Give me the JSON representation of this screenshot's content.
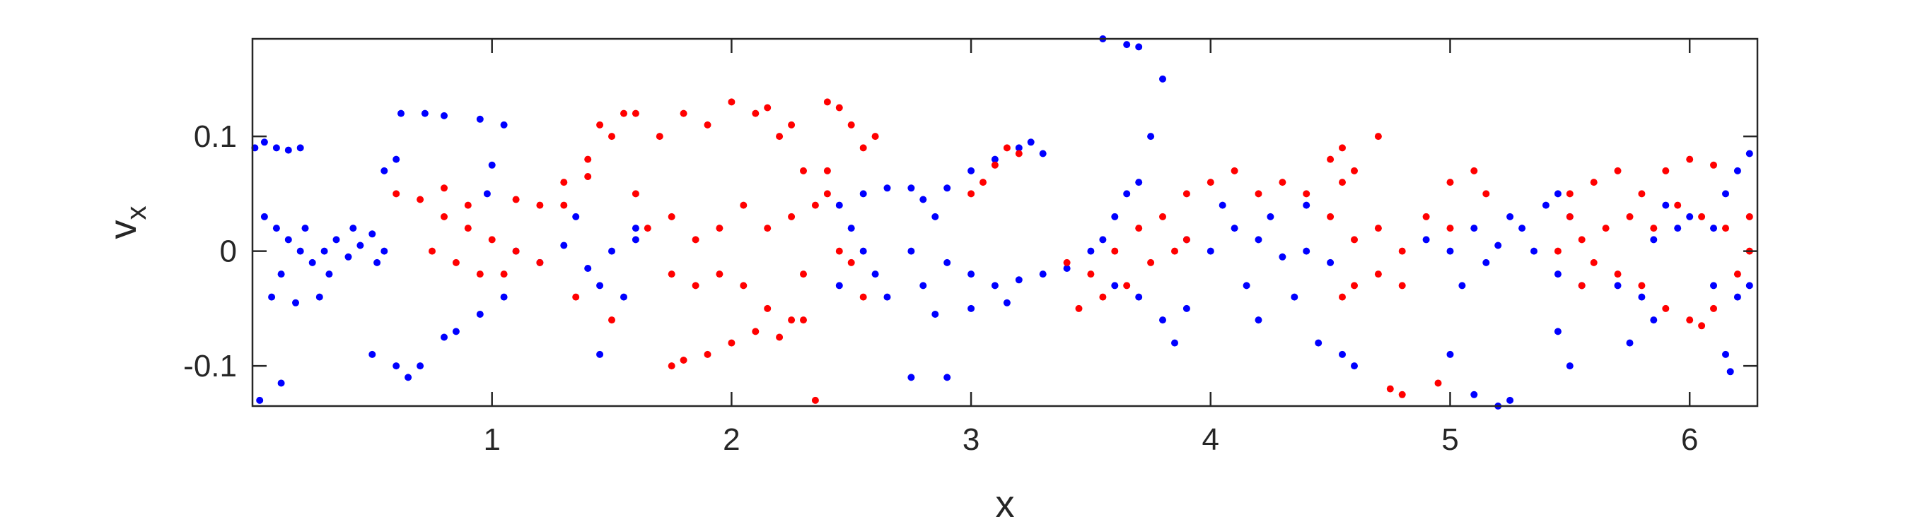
{
  "chart_data": {
    "type": "scatter",
    "title": "",
    "xlabel": "x",
    "ylabel": "v",
    "ylabel_sub": "x",
    "xlim": [
      0,
      6.283
    ],
    "ylim": [
      -0.135,
      0.185
    ],
    "xticks": [
      1,
      2,
      3,
      4,
      5,
      6
    ],
    "xtick_labels": [
      "1",
      "2",
      "3",
      "4",
      "5",
      "6"
    ],
    "yticks": [
      -0.1,
      0,
      0.1
    ],
    "ytick_labels": [
      "-0.1",
      "0",
      "0.1"
    ],
    "grid": false,
    "legend": "none",
    "series": [
      {
        "color": "#0000ff",
        "points": [
          [
            0.01,
            0.09
          ],
          [
            0.05,
            0.095
          ],
          [
            0.1,
            0.09
          ],
          [
            0.15,
            0.088
          ],
          [
            0.2,
            0.09
          ],
          [
            0.05,
            0.03
          ],
          [
            0.1,
            0.02
          ],
          [
            0.15,
            0.01
          ],
          [
            0.2,
            0.0
          ],
          [
            0.25,
            -0.01
          ],
          [
            0.3,
            0.0
          ],
          [
            0.35,
            0.01
          ],
          [
            0.4,
            -0.005
          ],
          [
            0.45,
            0.005
          ],
          [
            0.5,
            0.015
          ],
          [
            0.55,
            0.0
          ],
          [
            0.12,
            -0.02
          ],
          [
            0.22,
            0.02
          ],
          [
            0.32,
            -0.02
          ],
          [
            0.42,
            0.02
          ],
          [
            0.52,
            -0.01
          ],
          [
            0.08,
            -0.04
          ],
          [
            0.18,
            -0.045
          ],
          [
            0.28,
            -0.04
          ],
          [
            0.03,
            -0.13
          ],
          [
            0.12,
            -0.115
          ],
          [
            0.5,
            -0.09
          ],
          [
            0.6,
            -0.1
          ],
          [
            0.55,
            0.07
          ],
          [
            0.6,
            0.08
          ],
          [
            0.62,
            0.12
          ],
          [
            0.72,
            0.12
          ],
          [
            0.8,
            0.118
          ],
          [
            0.95,
            0.115
          ],
          [
            1.05,
            0.11
          ],
          [
            1.0,
            0.075
          ],
          [
            0.98,
            0.05
          ],
          [
            1.1,
            0.0
          ],
          [
            1.2,
            -0.01
          ],
          [
            1.3,
            0.005
          ],
          [
            1.4,
            -0.015
          ],
          [
            1.5,
            0.0
          ],
          [
            1.6,
            0.01
          ],
          [
            1.35,
            0.03
          ],
          [
            1.45,
            -0.03
          ],
          [
            1.55,
            -0.04
          ],
          [
            1.45,
            -0.09
          ],
          [
            1.6,
            0.02
          ],
          [
            0.8,
            -0.075
          ],
          [
            0.85,
            -0.07
          ],
          [
            0.95,
            -0.055
          ],
          [
            1.05,
            -0.04
          ],
          [
            0.7,
            -0.1
          ],
          [
            0.65,
            -0.11
          ],
          [
            2.45,
            0.04
          ],
          [
            2.5,
            0.02
          ],
          [
            2.55,
            0.0
          ],
          [
            2.6,
            -0.02
          ],
          [
            2.65,
            -0.04
          ],
          [
            2.45,
            -0.03
          ],
          [
            2.55,
            0.05
          ],
          [
            2.65,
            0.055
          ],
          [
            2.75,
            0.055
          ],
          [
            2.8,
            0.045
          ],
          [
            2.75,
            0.0
          ],
          [
            2.85,
            0.03
          ],
          [
            2.9,
            0.055
          ],
          [
            3.0,
            0.07
          ],
          [
            3.1,
            0.08
          ],
          [
            3.2,
            0.09
          ],
          [
            3.3,
            0.085
          ],
          [
            3.25,
            0.095
          ],
          [
            3.0,
            -0.02
          ],
          [
            3.1,
            -0.03
          ],
          [
            3.2,
            -0.025
          ],
          [
            3.3,
            -0.02
          ],
          [
            3.4,
            -0.015
          ],
          [
            3.0,
            -0.05
          ],
          [
            3.15,
            -0.045
          ],
          [
            2.8,
            -0.03
          ],
          [
            2.9,
            -0.01
          ],
          [
            2.85,
            -0.055
          ],
          [
            2.75,
            -0.11
          ],
          [
            2.9,
            -0.11
          ],
          [
            3.5,
            0.0
          ],
          [
            3.55,
            0.01
          ],
          [
            3.6,
            0.03
          ],
          [
            3.65,
            0.05
          ],
          [
            3.7,
            0.06
          ],
          [
            3.75,
            0.1
          ],
          [
            3.8,
            0.15
          ],
          [
            3.55,
            0.185
          ],
          [
            3.65,
            0.18
          ],
          [
            3.7,
            0.178
          ],
          [
            3.6,
            -0.03
          ],
          [
            3.7,
            -0.04
          ],
          [
            3.8,
            -0.06
          ],
          [
            3.9,
            -0.05
          ],
          [
            3.85,
            -0.08
          ],
          [
            3.9,
            0.01
          ],
          [
            4.0,
            0.0
          ],
          [
            4.1,
            0.02
          ],
          [
            4.2,
            0.01
          ],
          [
            4.3,
            -0.005
          ],
          [
            4.4,
            0.0
          ],
          [
            4.5,
            -0.01
          ],
          [
            4.05,
            0.04
          ],
          [
            4.15,
            -0.03
          ],
          [
            4.25,
            0.03
          ],
          [
            4.35,
            -0.04
          ],
          [
            4.45,
            -0.08
          ],
          [
            4.4,
            0.04
          ],
          [
            4.2,
            -0.06
          ],
          [
            4.55,
            -0.09
          ],
          [
            4.6,
            -0.1
          ],
          [
            4.9,
            0.01
          ],
          [
            5.0,
            0.0
          ],
          [
            5.1,
            0.02
          ],
          [
            5.2,
            0.005
          ],
          [
            5.3,
            0.02
          ],
          [
            5.4,
            0.04
          ],
          [
            5.45,
            0.05
          ],
          [
            5.5,
            0.03
          ],
          [
            5.05,
            -0.03
          ],
          [
            5.15,
            -0.01
          ],
          [
            5.25,
            0.03
          ],
          [
            5.35,
            0.0
          ],
          [
            5.45,
            -0.02
          ],
          [
            5.55,
            -0.03
          ],
          [
            5.2,
            -0.135
          ],
          [
            5.25,
            -0.13
          ],
          [
            5.1,
            -0.125
          ],
          [
            5.0,
            -0.09
          ],
          [
            5.45,
            -0.07
          ],
          [
            5.5,
            -0.1
          ],
          [
            5.75,
            -0.08
          ],
          [
            5.85,
            -0.06
          ],
          [
            5.9,
            0.04
          ],
          [
            5.95,
            0.02
          ],
          [
            6.0,
            0.03
          ],
          [
            6.1,
            0.02
          ],
          [
            6.15,
            0.05
          ],
          [
            6.2,
            0.07
          ],
          [
            6.25,
            0.085
          ],
          [
            6.1,
            -0.03
          ],
          [
            6.2,
            -0.04
          ],
          [
            6.25,
            -0.03
          ],
          [
            6.15,
            -0.09
          ],
          [
            6.17,
            -0.105
          ],
          [
            5.7,
            -0.03
          ],
          [
            5.8,
            -0.04
          ],
          [
            5.85,
            0.01
          ]
        ]
      },
      {
        "color": "#ff0000",
        "points": [
          [
            0.6,
            0.05
          ],
          [
            0.7,
            0.045
          ],
          [
            0.8,
            0.03
          ],
          [
            0.9,
            0.02
          ],
          [
            1.0,
            0.01
          ],
          [
            1.1,
            0.0
          ],
          [
            1.2,
            -0.01
          ],
          [
            0.75,
            0.0
          ],
          [
            0.85,
            -0.01
          ],
          [
            0.95,
            -0.02
          ],
          [
            1.05,
            -0.02
          ],
          [
            0.8,
            0.055
          ],
          [
            0.9,
            0.04
          ],
          [
            1.1,
            0.045
          ],
          [
            1.2,
            0.04
          ],
          [
            1.3,
            0.06
          ],
          [
            1.4,
            0.08
          ],
          [
            1.5,
            0.1
          ],
          [
            1.6,
            0.12
          ],
          [
            1.45,
            0.11
          ],
          [
            1.55,
            0.12
          ],
          [
            1.3,
            0.04
          ],
          [
            1.4,
            0.065
          ],
          [
            1.35,
            -0.04
          ],
          [
            1.5,
            -0.06
          ],
          [
            1.6,
            0.05
          ],
          [
            1.7,
            0.1
          ],
          [
            1.8,
            0.12
          ],
          [
            1.9,
            0.11
          ],
          [
            2.0,
            0.13
          ],
          [
            2.1,
            0.12
          ],
          [
            2.15,
            0.125
          ],
          [
            2.2,
            0.1
          ],
          [
            2.25,
            0.11
          ],
          [
            1.65,
            0.02
          ],
          [
            1.75,
            0.03
          ],
          [
            1.85,
            0.01
          ],
          [
            1.95,
            0.02
          ],
          [
            2.05,
            0.04
          ],
          [
            2.15,
            0.02
          ],
          [
            2.25,
            0.03
          ],
          [
            2.35,
            0.04
          ],
          [
            2.4,
            0.05
          ],
          [
            1.75,
            -0.02
          ],
          [
            1.85,
            -0.03
          ],
          [
            1.95,
            -0.02
          ],
          [
            2.05,
            -0.03
          ],
          [
            2.15,
            -0.05
          ],
          [
            2.25,
            -0.06
          ],
          [
            1.8,
            -0.095
          ],
          [
            1.9,
            -0.09
          ],
          [
            2.0,
            -0.08
          ],
          [
            2.1,
            -0.07
          ],
          [
            2.2,
            -0.075
          ],
          [
            2.3,
            -0.06
          ],
          [
            1.75,
            -0.1
          ],
          [
            2.35,
            -0.13
          ],
          [
            2.3,
            -0.02
          ],
          [
            2.4,
            0.13
          ],
          [
            2.45,
            0.125
          ],
          [
            2.5,
            0.11
          ],
          [
            2.55,
            0.09
          ],
          [
            2.6,
            0.1
          ],
          [
            2.3,
            0.07
          ],
          [
            2.4,
            0.07
          ],
          [
            2.5,
            -0.01
          ],
          [
            2.55,
            -0.04
          ],
          [
            2.45,
            0.0
          ],
          [
            3.0,
            0.05
          ],
          [
            3.05,
            0.06
          ],
          [
            3.1,
            0.075
          ],
          [
            3.15,
            0.09
          ],
          [
            3.2,
            0.085
          ],
          [
            3.4,
            -0.01
          ],
          [
            3.5,
            -0.02
          ],
          [
            3.6,
            0.0
          ],
          [
            3.7,
            0.02
          ],
          [
            3.8,
            0.03
          ],
          [
            3.9,
            0.01
          ],
          [
            3.65,
            -0.03
          ],
          [
            3.75,
            -0.01
          ],
          [
            3.85,
            0.0
          ],
          [
            3.45,
            -0.05
          ],
          [
            3.55,
            -0.04
          ],
          [
            3.9,
            0.05
          ],
          [
            4.0,
            0.06
          ],
          [
            4.1,
            0.07
          ],
          [
            4.2,
            0.05
          ],
          [
            4.3,
            0.06
          ],
          [
            4.4,
            0.05
          ],
          [
            4.55,
            0.06
          ],
          [
            4.6,
            0.07
          ],
          [
            4.7,
            0.1
          ],
          [
            4.5,
            0.08
          ],
          [
            4.55,
            0.09
          ],
          [
            4.5,
            0.03
          ],
          [
            4.6,
            0.01
          ],
          [
            4.7,
            0.02
          ],
          [
            4.8,
            0.0
          ],
          [
            4.9,
            0.03
          ],
          [
            5.0,
            0.02
          ],
          [
            4.6,
            -0.03
          ],
          [
            4.7,
            -0.02
          ],
          [
            4.8,
            -0.03
          ],
          [
            4.55,
            -0.04
          ],
          [
            4.75,
            -0.12
          ],
          [
            4.8,
            -0.125
          ],
          [
            4.95,
            -0.115
          ],
          [
            5.0,
            0.06
          ],
          [
            5.1,
            0.07
          ],
          [
            5.15,
            0.05
          ],
          [
            5.5,
            0.03
          ],
          [
            5.55,
            0.01
          ],
          [
            5.6,
            -0.01
          ],
          [
            5.7,
            -0.02
          ],
          [
            5.8,
            -0.03
          ],
          [
            5.9,
            -0.05
          ],
          [
            6.0,
            -0.06
          ],
          [
            6.05,
            -0.065
          ],
          [
            6.1,
            -0.05
          ],
          [
            6.2,
            -0.02
          ],
          [
            6.25,
            0.0
          ],
          [
            5.45,
            0.0
          ],
          [
            5.55,
            -0.03
          ],
          [
            5.65,
            0.02
          ],
          [
            5.75,
            0.03
          ],
          [
            5.85,
            0.02
          ],
          [
            5.95,
            0.04
          ],
          [
            6.05,
            0.03
          ],
          [
            6.15,
            0.02
          ],
          [
            6.25,
            0.03
          ],
          [
            5.6,
            0.06
          ],
          [
            5.7,
            0.07
          ],
          [
            5.8,
            0.05
          ],
          [
            5.9,
            0.07
          ],
          [
            6.0,
            0.08
          ],
          [
            6.1,
            0.075
          ],
          [
            5.5,
            0.05
          ]
        ]
      }
    ]
  }
}
